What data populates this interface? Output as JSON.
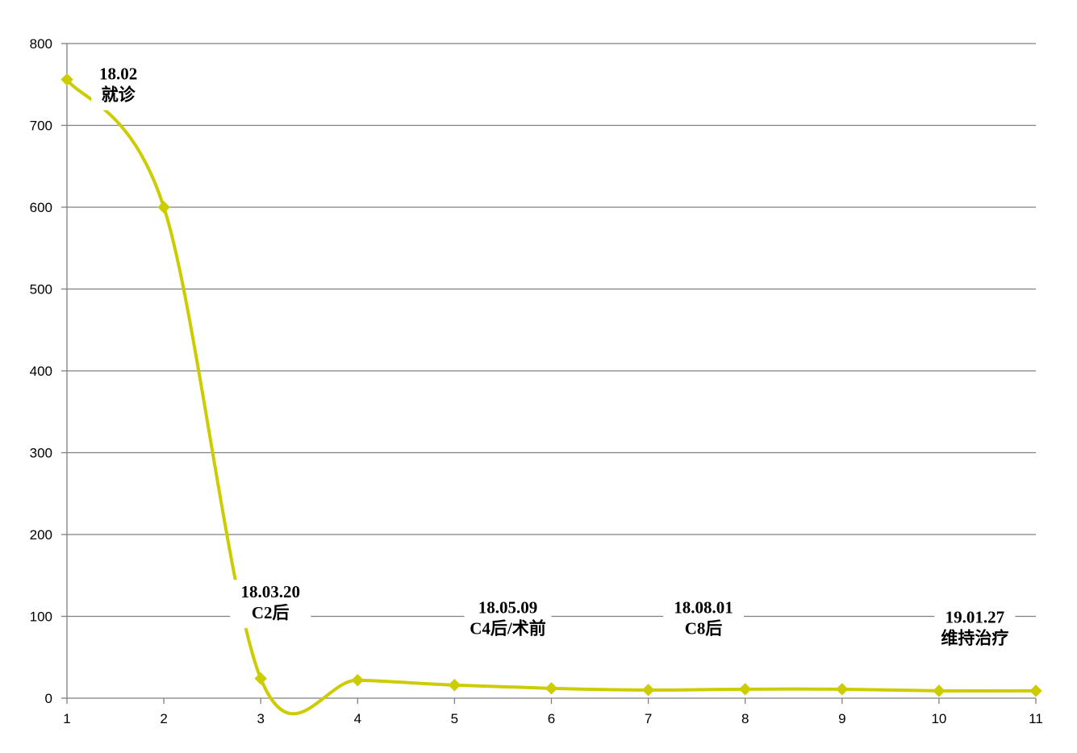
{
  "chart_data": {
    "type": "line",
    "title": "",
    "xlabel": "",
    "ylabel": "",
    "x": [
      1,
      2,
      3,
      4,
      5,
      6,
      7,
      8,
      9,
      10,
      11
    ],
    "series": [
      {
        "values": [
          756,
          600,
          24,
          22,
          16,
          12,
          10,
          11,
          11,
          9,
          9
        ]
      }
    ],
    "xlim": [
      1,
      11
    ],
    "ylim": [
      0,
      800
    ],
    "y_ticks": [
      0,
      100,
      200,
      300,
      400,
      500,
      600,
      700,
      800
    ],
    "grid": "horizontal",
    "legend": "none",
    "smooth": true,
    "marker": "diamond",
    "colors": {
      "line": "#cccc00",
      "grid": "#808080",
      "axis": "#808080"
    },
    "annotations": [
      {
        "lines": [
          "18.02",
          "就诊"
        ],
        "x": 1.53,
        "y": 756
      },
      {
        "lines": [
          "18.03.20",
          "C2后"
        ],
        "x": 3.1,
        "y": 123
      },
      {
        "lines": [
          "18.05.09",
          "C4后/术前"
        ],
        "x": 5.55,
        "y": 104
      },
      {
        "lines": [
          "18.08.01",
          "C8后"
        ],
        "x": 7.57,
        "y": 104
      },
      {
        "lines": [
          "19.01.27",
          "维持治疗"
        ],
        "x": 10.37,
        "y": 92
      }
    ]
  }
}
